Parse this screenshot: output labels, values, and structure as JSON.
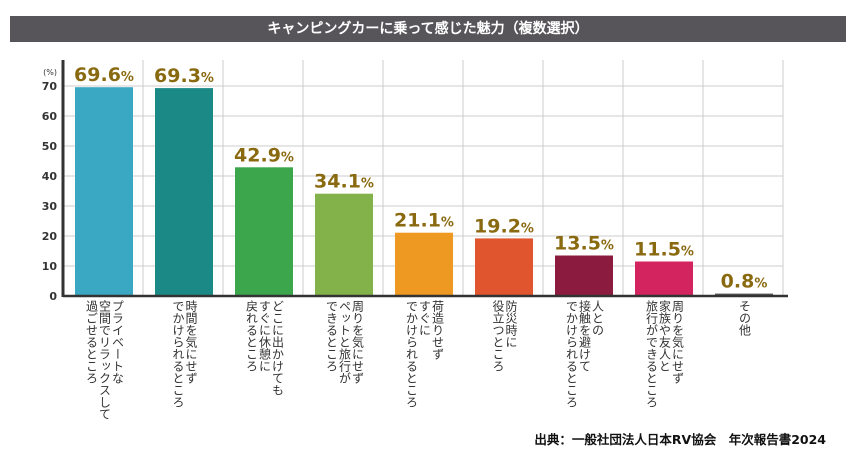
{
  "chart_data": {
    "type": "bar",
    "title": "キャンピングカーに乗って感じた魅力（複数選択）",
    "ylabel": "(%)",
    "ylim": [
      0,
      70
    ],
    "yticks": [
      0,
      10,
      20,
      30,
      40,
      50,
      60,
      70
    ],
    "grid": true,
    "categories": [
      "プライベートな\n空間でリラックスして\n過ごせるところ",
      "時間を気にせず\nでかけられるところ",
      "どこに出かけても\nすぐに休憩に\n戻れるところ",
      "周りを気にせず\nペットと旅行が\nできるところ",
      "荷造りせず\nすぐに\nでかけられるところ",
      "防災時に\n役立つところ",
      "人との\n接触を避けて\nでかけられるところ",
      "周りを気にせず\n家族や友人と\n旅行ができるところ",
      "その他"
    ],
    "values": [
      69.6,
      69.3,
      42.9,
      34.1,
      21.1,
      19.2,
      13.5,
      11.5,
      0.8
    ],
    "value_labels": [
      "69.6",
      "69.3",
      "42.9",
      "34.1",
      "21.1",
      "19.2",
      "13.5",
      "11.5",
      "0.8"
    ],
    "value_unit": "%",
    "colors": [
      "#3aa7c3",
      "#1b8a87",
      "#3ca64c",
      "#84b24a",
      "#ee9a22",
      "#e0552e",
      "#8b1c3f",
      "#d3245f",
      "#555555"
    ]
  },
  "source": "出典：一般社団法人日本RV協会　年次報告書2024"
}
